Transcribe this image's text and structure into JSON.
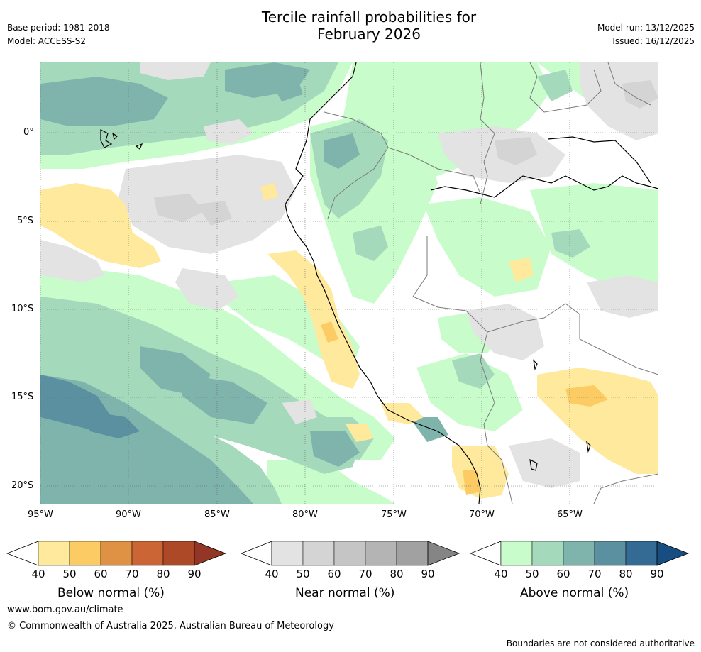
{
  "header": {
    "title_line1": "Tercile rainfall probabilities for",
    "title_line2": "February 2026",
    "base_period": "Base period: 1981-2018",
    "model": "Model: ACCESS-S2",
    "model_run": "Model run: 13/12/2025",
    "issued": "Issued: 16/12/2025"
  },
  "axes": {
    "lat_labels": [
      "0°",
      "5°S",
      "10°S",
      "15°S",
      "20°S"
    ],
    "lon_labels": [
      "95°W",
      "90°W",
      "85°W",
      "80°W",
      "75°W",
      "70°W",
      "65°W"
    ]
  },
  "legends": [
    {
      "label": "Below normal (%)",
      "ticks": [
        "40",
        "50",
        "60",
        "70",
        "80",
        "90"
      ],
      "colors": [
        "#ffffff",
        "#fee99c",
        "#fdcb63",
        "#e09244",
        "#cc6535",
        "#ae4928",
        "#933625"
      ]
    },
    {
      "label": "Near normal (%)",
      "ticks": [
        "40",
        "50",
        "60",
        "70",
        "80",
        "90"
      ],
      "colors": [
        "#ffffff",
        "#e3e3e3",
        "#d4d4d4",
        "#c5c5c5",
        "#b4b4b4",
        "#a1a1a1",
        "#858585"
      ]
    },
    {
      "label": "Above normal (%)",
      "ticks": [
        "40",
        "50",
        "60",
        "70",
        "80",
        "90"
      ],
      "colors": [
        "#ffffff",
        "#c8fccb",
        "#a5d9bc",
        "#7fb4ad",
        "#5a909f",
        "#336b94",
        "#174d81"
      ]
    }
  ],
  "footer": {
    "url": "www.bom.gov.au/climate",
    "copyright": "© Commonwealth of Australia 2025, Australian Bureau of Meteorology",
    "disclaimer": "Boundaries are not considered authoritative"
  }
}
